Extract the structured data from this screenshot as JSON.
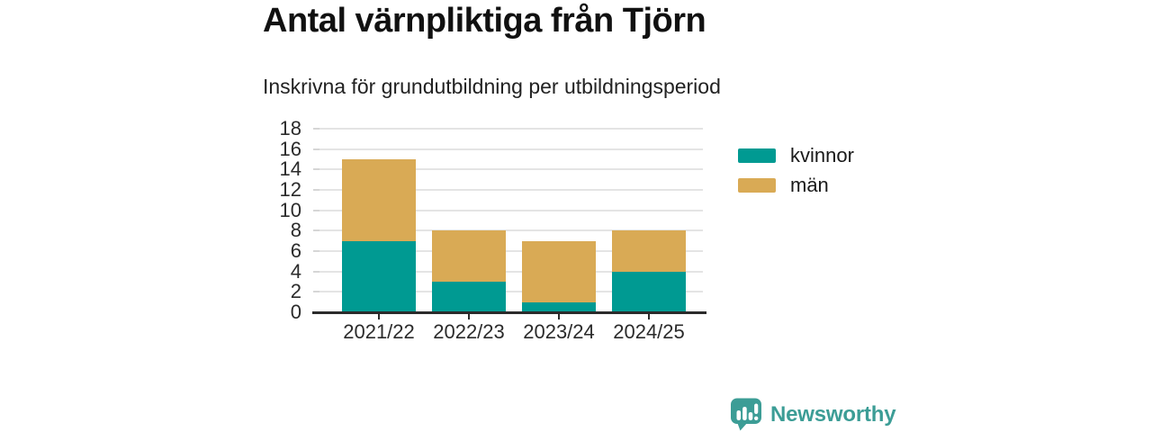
{
  "title": "Antal värnpliktiga från Tjörn",
  "subtitle": "Inskrivna för grundutbildning per utbildningsperiod",
  "chart_data": {
    "type": "bar",
    "stacked": true,
    "title": "Antal värnpliktiga från Tjörn",
    "subtitle": "Inskrivna för grundutbildning per utbildningsperiod",
    "categories": [
      "2021/22",
      "2022/23",
      "2023/24",
      "2024/25"
    ],
    "series": [
      {
        "name": "kvinnor",
        "color": "#009a92",
        "values": [
          7,
          3,
          1,
          4
        ]
      },
      {
        "name": "män",
        "color": "#d9aa55",
        "values": [
          8,
          5,
          6,
          4
        ]
      }
    ],
    "stack_totals": [
      15,
      8,
      7,
      8
    ],
    "xlabel": "",
    "ylabel": "",
    "ylim": [
      0,
      18
    ],
    "yticks": [
      0,
      2,
      4,
      6,
      8,
      10,
      12,
      14,
      16,
      18
    ],
    "grid": true,
    "legend_position": "right"
  },
  "legend": {
    "items": [
      {
        "label": "kvinnor",
        "color": "#009a92"
      },
      {
        "label": "män",
        "color": "#d9aa55"
      }
    ]
  },
  "footer": {
    "brand": "Newsworthy",
    "brand_color": "#3c9d96",
    "logo_icon": "newsworthy-speech-bubble-chart-icon"
  },
  "colors": {
    "background": "#ffffff",
    "text": "#111111",
    "grid": "#e4e4e4",
    "axis": "#2b2b2b"
  }
}
